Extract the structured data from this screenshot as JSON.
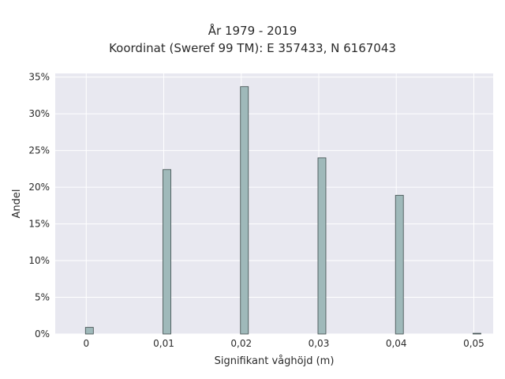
{
  "chart_data": {
    "type": "bar",
    "title": "År 1979 - 2019",
    "subtitle": "Koordinat (Sweref 99 TM): E 357433, N 6167043",
    "xlabel": "Signifikant våghöjd (m)",
    "ylabel": "Andel",
    "x": [
      0,
      0.01,
      0.02,
      0.03,
      0.04,
      0.05
    ],
    "values": [
      0.9,
      22.4,
      33.7,
      24.0,
      18.9,
      0.1
    ],
    "xlim": [
      -0.004,
      0.0525
    ],
    "ylim": [
      0,
      35.5
    ],
    "xticks": [
      0,
      0.01,
      0.02,
      0.03,
      0.04,
      0.05
    ],
    "xtick_labels": [
      "0",
      "0,01",
      "0,02",
      "0,03",
      "0,04",
      "0,05"
    ],
    "yticks": [
      0,
      5,
      10,
      15,
      20,
      25,
      30,
      35
    ],
    "ytick_labels": [
      "0%",
      "5%",
      "10%",
      "15%",
      "20%",
      "25%",
      "30%",
      "35%"
    ],
    "grid": true,
    "bar_color": "#9fb9ba",
    "bar_edge_color": "#3c4a4a",
    "plot_bg": "#e8e8f0"
  }
}
